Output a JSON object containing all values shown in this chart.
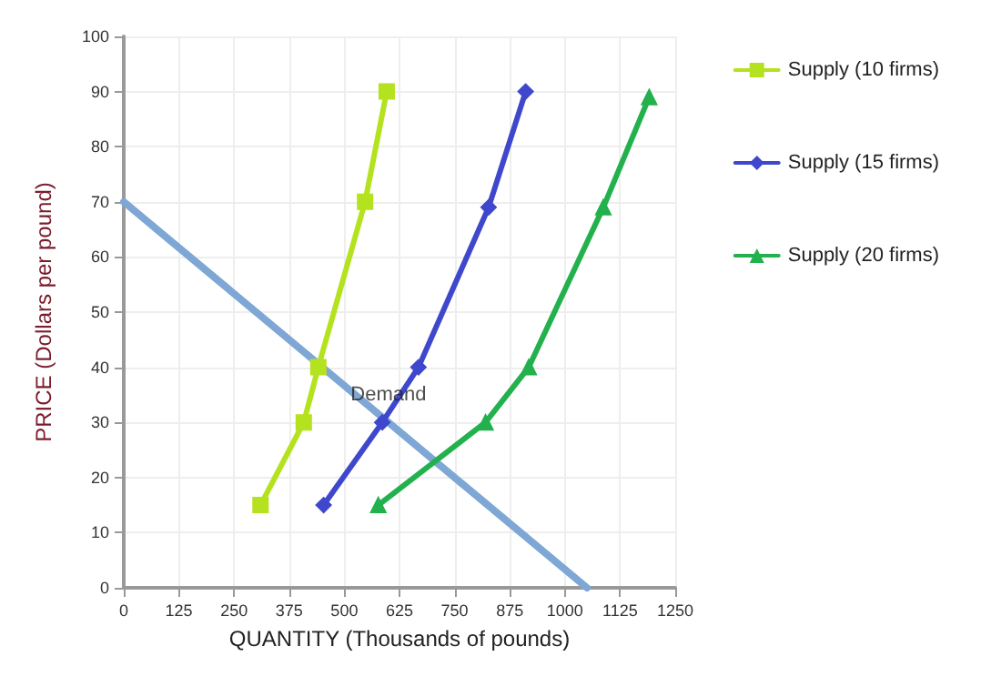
{
  "chart_data": {
    "type": "line",
    "xlabel": "QUANTITY (Thousands of pounds)",
    "ylabel": "PRICE (Dollars per pound)",
    "xlim": [
      0,
      1250
    ],
    "xticks": [
      0,
      125,
      250,
      375,
      500,
      625,
      750,
      875,
      1000,
      1125,
      1250
    ],
    "ylim": [
      0,
      100
    ],
    "yticks": [
      0,
      10,
      20,
      30,
      40,
      50,
      60,
      70,
      80,
      90,
      100
    ],
    "grid": true,
    "legend": "right",
    "series": [
      {
        "name": "Supply (10 firms)",
        "color": "#b5e21e",
        "marker": "square",
        "x": [
          310,
          408,
          441,
          547,
          596
        ],
        "values": [
          15,
          30,
          40,
          70,
          90
        ]
      },
      {
        "name": "Supply (15 firms)",
        "color": "#3f48cc",
        "marker": "diamond",
        "x": [
          453,
          586,
          668,
          827,
          911
        ],
        "values": [
          15,
          30,
          40,
          69,
          90
        ]
      },
      {
        "name": "Supply (20 firms)",
        "color": "#22b14c",
        "marker": "triangle",
        "x": [
          577,
          820,
          918,
          1087,
          1191
        ],
        "values": [
          15,
          30,
          40,
          69,
          89
        ]
      },
      {
        "color": "#7fa7d6",
        "marker": "none",
        "x": [
          0,
          1050
        ],
        "values": [
          70,
          0
        ]
      }
    ],
    "annotations": [
      {
        "text": "Demand",
        "x": 600,
        "y": 35
      }
    ]
  }
}
